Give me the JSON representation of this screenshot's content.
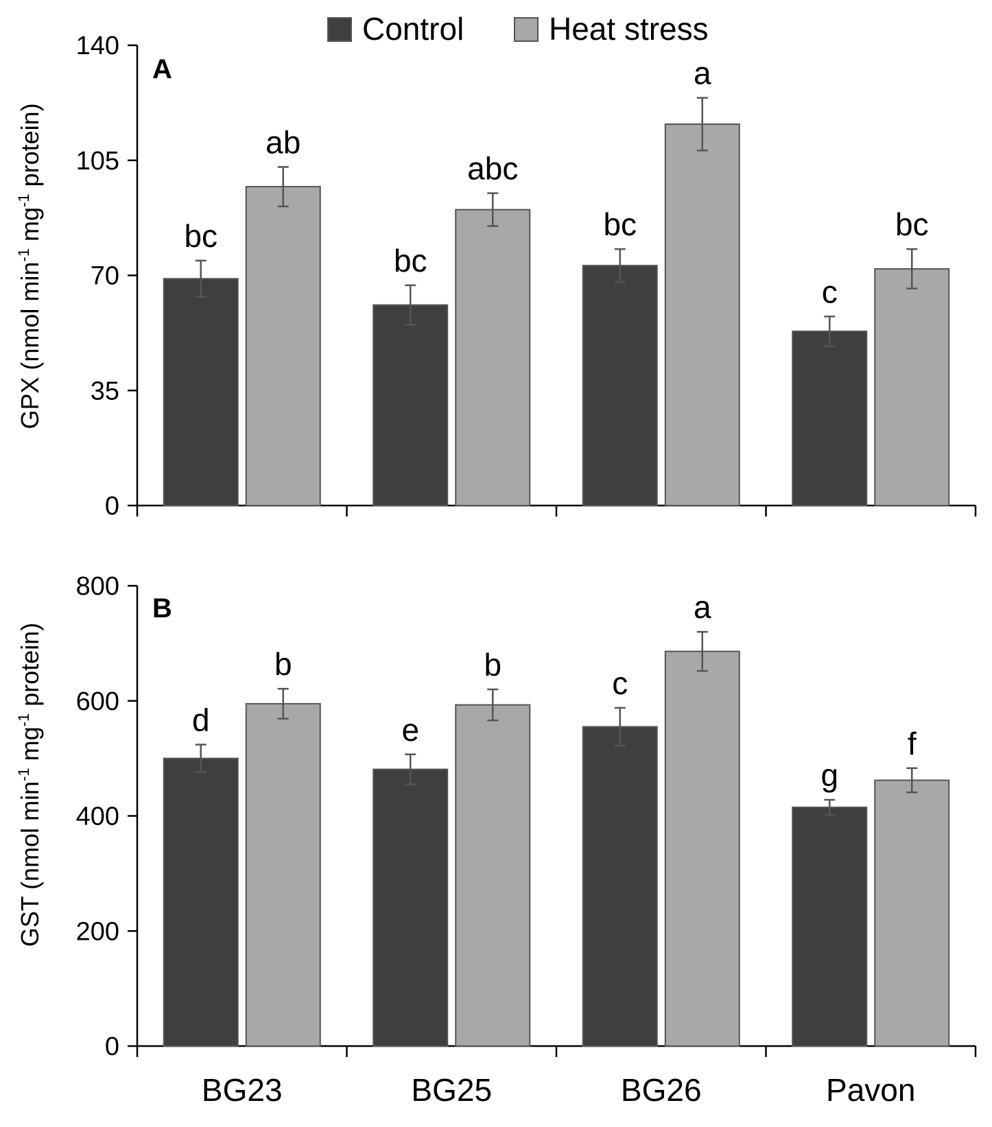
{
  "legend": [
    {
      "name": "Control",
      "color": "#3f3f3f"
    },
    {
      "name": "Heat stress",
      "color": "#a8a8a8"
    }
  ],
  "colors": {
    "control": "#3f3f3f",
    "heat": "#a8a8a8",
    "bar_stroke": "#555555",
    "error_bar": "#555555",
    "axis": "#000000"
  },
  "chart_data": [
    {
      "type": "bar",
      "panel": "A",
      "categories": [
        "BG23",
        "BG25",
        "BG26",
        "Pavon"
      ],
      "ylabel": {
        "pre": "GPX (nmol min",
        "sup1": "-1",
        "mid": " mg",
        "sup2": "-1",
        "post": " protein)"
      },
      "ylim": [
        0,
        140
      ],
      "yticks": [
        0,
        35,
        70,
        105,
        140
      ],
      "grid": false,
      "legend_placement": "top",
      "series": [
        {
          "name": "Control",
          "values": [
            69,
            61,
            73,
            53
          ],
          "errors": [
            5.5,
            6,
            5,
            4.5
          ],
          "letters": [
            "bc",
            "bc",
            "bc",
            "c"
          ]
        },
        {
          "name": "Heat stress",
          "values": [
            97,
            90,
            116,
            72
          ],
          "errors": [
            6,
            5,
            8,
            6
          ],
          "letters": [
            "ab",
            "abc",
            "a",
            "bc"
          ]
        }
      ]
    },
    {
      "type": "bar",
      "panel": "B",
      "categories": [
        "BG23",
        "BG25",
        "BG26",
        "Pavon"
      ],
      "ylabel": {
        "pre": "GST (nmol min",
        "sup1": "-1",
        "mid": " mg",
        "sup2": "-1",
        "post": " protein)"
      },
      "ylim": [
        0,
        800
      ],
      "yticks": [
        0,
        200,
        400,
        600,
        800
      ],
      "grid": false,
      "series": [
        {
          "name": "Control",
          "values": [
            500,
            481,
            555,
            415
          ],
          "errors": [
            24,
            26,
            33,
            13
          ],
          "letters": [
            "d",
            "e",
            "c",
            "g"
          ]
        },
        {
          "name": "Heat stress",
          "values": [
            595,
            593,
            686,
            462
          ],
          "errors": [
            26,
            27,
            34,
            21
          ],
          "letters": [
            "b",
            "b",
            "a",
            "f"
          ]
        }
      ]
    }
  ]
}
